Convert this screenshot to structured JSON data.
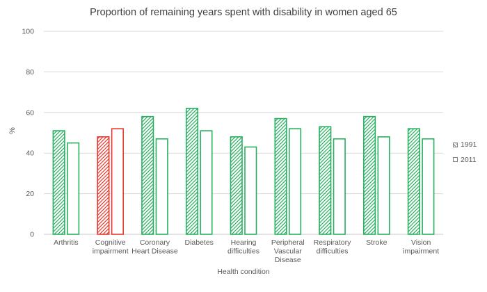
{
  "page": {
    "background": "#ffffff"
  },
  "chart_data": {
    "type": "bar",
    "title": "Proportion of remaining years spent with disability in women aged 65",
    "xlabel": "Health condition",
    "ylabel": "%",
    "ylim": [
      0,
      100
    ],
    "yticks": [
      0,
      20,
      40,
      60,
      80,
      100
    ],
    "grid": true,
    "legend_position": "right",
    "categories": [
      "Arthritis",
      "Cognitive impairment",
      "Coronary Heart Disease",
      "Diabetes",
      "Hearing difficulties",
      "Peripheral Vascular Disease",
      "Respiratory difficulties",
      "Stroke",
      "Vision impairment"
    ],
    "category_label_lines": [
      [
        "Arthritis"
      ],
      [
        "Cognitive",
        "impairment"
      ],
      [
        "Coronary",
        "Heart Disease"
      ],
      [
        "Diabetes"
      ],
      [
        "Hearing",
        "difficulties"
      ],
      [
        "Peripheral",
        "Vascular",
        "Disease"
      ],
      [
        "Respiratory",
        "difficulties"
      ],
      [
        "Stroke"
      ],
      [
        "Vision",
        "impairment"
      ]
    ],
    "series": [
      {
        "name": "1991",
        "style": "hatched",
        "values": [
          51,
          48,
          58,
          62,
          48,
          57,
          53,
          58,
          52
        ]
      },
      {
        "name": "2011",
        "style": "outline",
        "values": [
          45,
          52,
          47,
          51,
          43,
          52,
          47,
          48,
          47
        ]
      }
    ],
    "highlight_category": "Cognitive impairment",
    "colors": {
      "series_default": "#27b05f",
      "highlight": "#e6382e",
      "gridline": "#d9d9d9",
      "baseline": "#c9c9c9",
      "axis_text": "#595959",
      "title_text": "#404040",
      "legend_marker": "#808080"
    }
  }
}
